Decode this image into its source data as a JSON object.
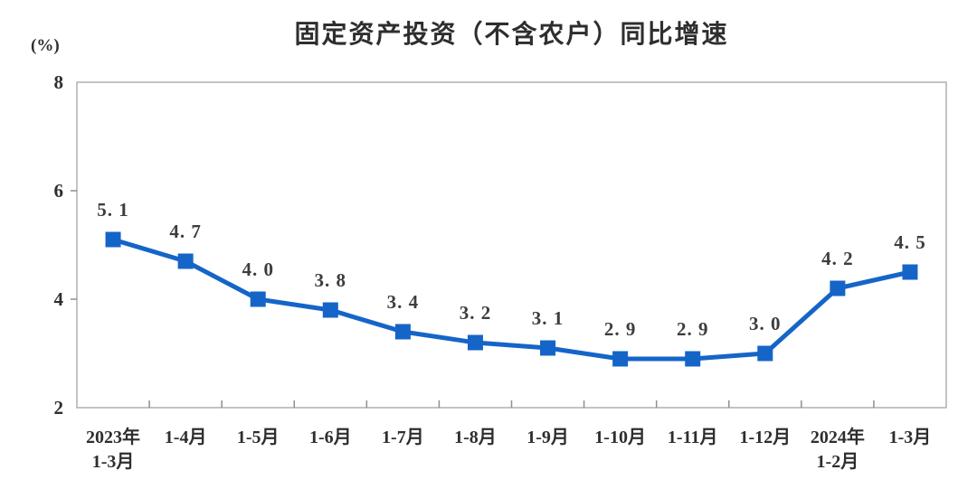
{
  "chart": {
    "title": "固定资产投资（不含农户）同比增速",
    "unit_label": "(%)",
    "accent_color": "#1565c8",
    "point_label_color": "#3d3d3d",
    "axis_text_color": "#2e2e2e",
    "box_border_color": "#b0b0b0",
    "tick_color": "#8f8f8f"
  },
  "chart_data": {
    "type": "line",
    "title": "固定资产投资（不含农户）同比增速",
    "xlabel": "",
    "ylabel": "(%)",
    "categories": [
      "2023年\n1-3月",
      "1-4月",
      "1-5月",
      "1-6月",
      "1-7月",
      "1-8月",
      "1-9月",
      "1-10月",
      "1-11月",
      "1-12月",
      "2024年\n1-2月",
      "1-3月"
    ],
    "values": [
      5.1,
      4.7,
      4.0,
      3.8,
      3.4,
      3.2,
      3.1,
      2.9,
      2.9,
      3.0,
      4.2,
      4.5
    ],
    "point_labels": [
      "5. 1",
      "4. 7",
      "4. 0",
      "3. 8",
      "3. 4",
      "3. 2",
      "3. 1",
      "2. 9",
      "2. 9",
      "3. 0",
      "4. 2",
      "4. 5"
    ],
    "ylim": [
      2,
      8
    ],
    "yticks": [
      2,
      4,
      6,
      8
    ],
    "grid": false,
    "legend": null,
    "series_name": "同比增速",
    "marker": "square",
    "line_color": "#1565c8"
  }
}
